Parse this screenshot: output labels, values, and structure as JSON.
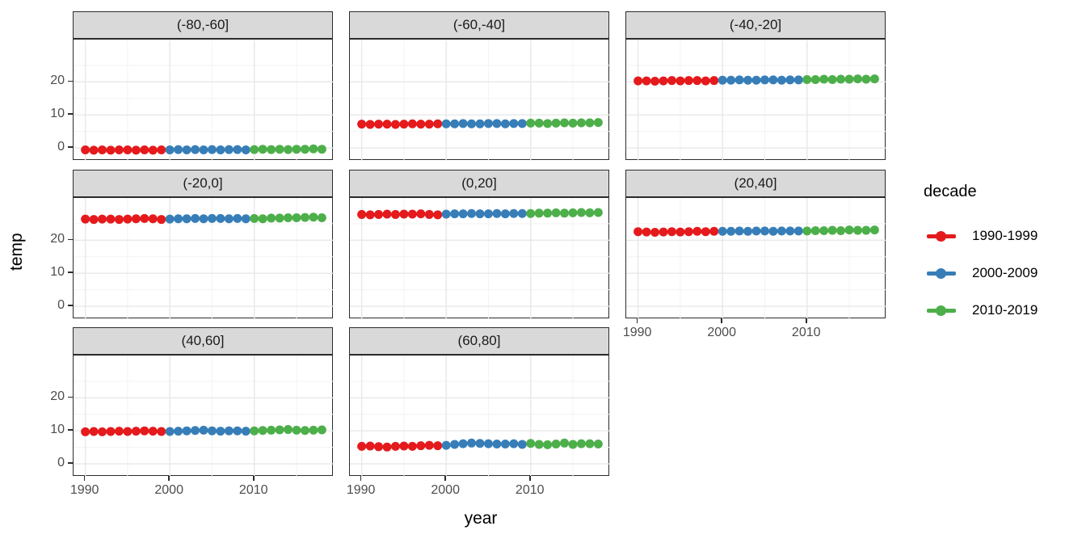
{
  "chart_data": {
    "type": "scatter",
    "title": "",
    "xlabel": "year",
    "ylabel": "temp",
    "x_domain": [
      1988.6,
      2019.4
    ],
    "y_domain": [
      -3.9,
      32.8
    ],
    "x_ticks": [
      1990,
      2000,
      2010
    ],
    "x_minor_ticks": [
      1995,
      2005,
      2015
    ],
    "y_ticks": [
      0,
      10,
      20
    ],
    "y_minor_ticks": [
      5,
      15,
      25
    ],
    "grid": true,
    "years": [
      1990,
      1991,
      1992,
      1993,
      1994,
      1995,
      1996,
      1997,
      1998,
      1999,
      2000,
      2001,
      2002,
      2003,
      2004,
      2005,
      2006,
      2007,
      2008,
      2009,
      2010,
      2011,
      2012,
      2013,
      2014,
      2015,
      2016,
      2017,
      2018
    ],
    "legend": {
      "title": "decade",
      "position": "right",
      "entries": [
        {
          "label": "1990-1999",
          "color": "#E41A1C",
          "year_min": 1990,
          "year_max": 1999
        },
        {
          "label": "2000-2009",
          "color": "#377EB8",
          "year_min": 2000,
          "year_max": 2009
        },
        {
          "label": "2010-2019",
          "color": "#4DAF4A",
          "year_min": 2010,
          "year_max": 2019
        }
      ]
    },
    "facets": [
      {
        "label": "(-80,-60]",
        "values": [
          -0.6,
          -0.7,
          -0.6,
          -0.7,
          -0.6,
          -0.6,
          -0.7,
          -0.6,
          -0.7,
          -0.6,
          -0.6,
          -0.5,
          -0.6,
          -0.5,
          -0.6,
          -0.5,
          -0.6,
          -0.5,
          -0.5,
          -0.6,
          -0.5,
          -0.4,
          -0.5,
          -0.4,
          -0.5,
          -0.4,
          -0.4,
          -0.3,
          -0.4
        ]
      },
      {
        "label": "(-60,-40]",
        "values": [
          7.2,
          7.1,
          7.2,
          7.2,
          7.1,
          7.2,
          7.3,
          7.2,
          7.2,
          7.3,
          7.3,
          7.3,
          7.4,
          7.3,
          7.3,
          7.4,
          7.4,
          7.3,
          7.4,
          7.4,
          7.5,
          7.5,
          7.4,
          7.5,
          7.6,
          7.5,
          7.6,
          7.6,
          7.7
        ]
      },
      {
        "label": "(-40,-20]",
        "values": [
          20.3,
          20.3,
          20.2,
          20.3,
          20.4,
          20.3,
          20.4,
          20.4,
          20.3,
          20.4,
          20.5,
          20.5,
          20.6,
          20.5,
          20.5,
          20.6,
          20.6,
          20.5,
          20.6,
          20.6,
          20.7,
          20.7,
          20.8,
          20.7,
          20.8,
          20.8,
          20.9,
          20.8,
          20.9
        ]
      },
      {
        "label": "(-20,0]",
        "values": [
          26.4,
          26.3,
          26.4,
          26.4,
          26.3,
          26.4,
          26.5,
          26.6,
          26.5,
          26.3,
          26.4,
          26.5,
          26.5,
          26.6,
          26.5,
          26.6,
          26.6,
          26.5,
          26.6,
          26.5,
          26.6,
          26.5,
          26.7,
          26.7,
          26.8,
          26.8,
          26.9,
          27.0,
          26.8
        ]
      },
      {
        "label": "(0,20]",
        "values": [
          27.8,
          27.7,
          27.8,
          27.9,
          27.8,
          27.9,
          27.9,
          28.0,
          27.8,
          27.7,
          27.9,
          28.0,
          28.0,
          28.1,
          28.0,
          28.0,
          28.1,
          28.0,
          28.1,
          28.1,
          28.1,
          28.2,
          28.2,
          28.3,
          28.2,
          28.3,
          28.4,
          28.3,
          28.4
        ]
      },
      {
        "label": "(20,40]",
        "values": [
          22.6,
          22.5,
          22.4,
          22.5,
          22.6,
          22.5,
          22.6,
          22.7,
          22.6,
          22.7,
          22.7,
          22.7,
          22.8,
          22.7,
          22.8,
          22.8,
          22.7,
          22.8,
          22.8,
          22.8,
          22.8,
          22.9,
          22.9,
          23.0,
          22.9,
          23.1,
          23.0,
          23.0,
          23.1
        ]
      },
      {
        "label": "(40,60]",
        "values": [
          9.7,
          9.8,
          9.7,
          9.8,
          9.9,
          9.8,
          9.9,
          10.0,
          9.9,
          9.8,
          9.8,
          9.9,
          10.0,
          10.1,
          10.2,
          10.0,
          9.9,
          10.0,
          10.0,
          9.9,
          10.0,
          10.1,
          10.2,
          10.3,
          10.4,
          10.2,
          10.1,
          10.2,
          10.3
        ]
      },
      {
        "label": "(60,80]",
        "values": [
          5.3,
          5.4,
          5.2,
          5.1,
          5.3,
          5.4,
          5.3,
          5.5,
          5.6,
          5.5,
          5.6,
          5.9,
          6.1,
          6.3,
          6.2,
          6.1,
          6.0,
          6.0,
          6.1,
          5.9,
          6.2,
          5.9,
          5.8,
          6.0,
          6.3,
          5.9,
          6.1,
          6.1,
          6.0
        ]
      }
    ],
    "style": {
      "strip_fill": "#D9D9D9",
      "panel_border": "#2B2B2B",
      "grid_major": "#E8E8E8",
      "grid_minor": "#F3F3F3",
      "tick_label_color": "#4D4D4D",
      "point_radius": 5.5
    }
  }
}
